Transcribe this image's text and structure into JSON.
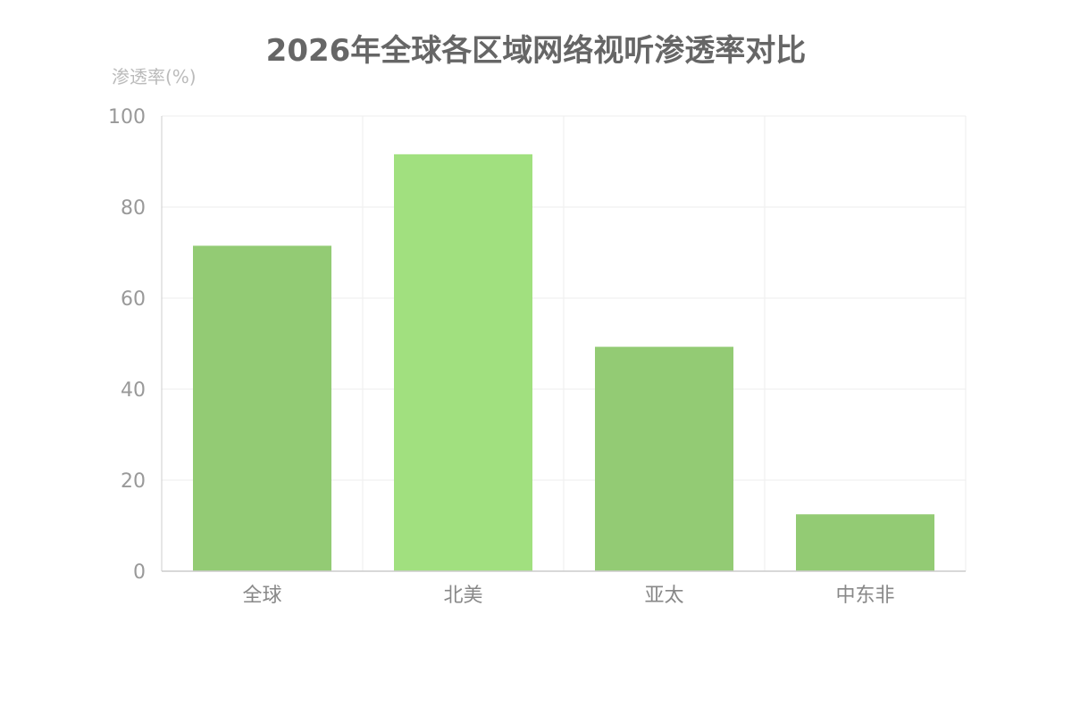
{
  "chart_data": {
    "type": "bar",
    "title": "2026年全球各区域网络视听渗透率对比",
    "xlabel": "",
    "ylabel": "渗透率(%)",
    "ylim": [
      0,
      100
    ],
    "yticks": [
      0,
      20,
      40,
      60,
      80,
      100
    ],
    "categories": [
      "全球",
      "北美",
      "亚太",
      "中东非"
    ],
    "values": [
      71.5,
      91.6,
      49.3,
      12.5
    ],
    "grid": true,
    "bar_colors": [
      "#93cb74",
      "#a1e07f",
      "#93cb74",
      "#93cb74"
    ],
    "colors": {
      "title": "#666666",
      "ylabel": "#bbbbbb",
      "tick": "#999999",
      "category": "#888888",
      "grid": "#eeeeee",
      "axis": "#cccccc"
    }
  }
}
